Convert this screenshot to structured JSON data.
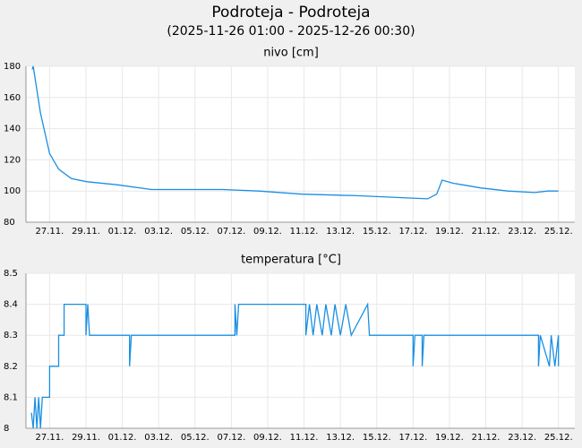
{
  "title": "Podroteja - Podroteja",
  "subtitle": "(2025-11-26 01:00 - 2025-12-26 00:30)",
  "chart_data": [
    {
      "type": "line",
      "title": "nivo [cm]",
      "color": "#1a8fe3",
      "grid": true,
      "xlim": [
        -0.3,
        29.9
      ],
      "ylim": [
        80,
        180
      ],
      "yticks": [
        80,
        100,
        120,
        140,
        160,
        180
      ],
      "xticks": [
        {
          "value": 1,
          "label": "27.11."
        },
        {
          "value": 3,
          "label": "29.11."
        },
        {
          "value": 5,
          "label": "01.12."
        },
        {
          "value": 7,
          "label": "03.12."
        },
        {
          "value": 9,
          "label": "05.12."
        },
        {
          "value": 11,
          "label": "07.12."
        },
        {
          "value": 13,
          "label": "09.12."
        },
        {
          "value": 15,
          "label": "11.12."
        },
        {
          "value": 17,
          "label": "13.12."
        },
        {
          "value": 19,
          "label": "15.12."
        },
        {
          "value": 21,
          "label": "17.12."
        },
        {
          "value": 23,
          "label": "19.12."
        },
        {
          "value": 25,
          "label": "21.12."
        },
        {
          "value": 27,
          "label": "23.12."
        },
        {
          "value": 29,
          "label": "25.12."
        }
      ],
      "x": [
        0.04,
        0.1,
        0.5,
        1.0,
        1.5,
        2.2,
        3.05,
        4.7,
        6.6,
        10.5,
        12.5,
        14.9,
        17.9,
        20.8,
        21.8,
        22.3,
        22.6,
        23.2,
        24.7,
        26.2,
        27.7,
        28.4,
        29.0
      ],
      "values": [
        178,
        180,
        150,
        124,
        114,
        108,
        106,
        104,
        101,
        101,
        100,
        98,
        97,
        95.5,
        95,
        98,
        107,
        105,
        102,
        100,
        99,
        100,
        100
      ]
    },
    {
      "type": "line",
      "title": "temperatura [°C]",
      "color": "#1a8fe3",
      "grid": true,
      "xlim": [
        -0.3,
        29.9
      ],
      "ylim": [
        8,
        8.5
      ],
      "yticks": [
        8,
        8.1,
        8.2,
        8.3,
        8.4,
        8.5
      ],
      "xticks": [
        {
          "value": 1,
          "label": "27.11."
        },
        {
          "value": 3,
          "label": "29.11."
        },
        {
          "value": 5,
          "label": "01.12."
        },
        {
          "value": 7,
          "label": "03.12."
        },
        {
          "value": 9,
          "label": "05.12."
        },
        {
          "value": 11,
          "label": "07.12."
        },
        {
          "value": 13,
          "label": "09.12."
        },
        {
          "value": 15,
          "label": "11.12."
        },
        {
          "value": 17,
          "label": "13.12."
        },
        {
          "value": 19,
          "label": "15.12."
        },
        {
          "value": 21,
          "label": "17.12."
        },
        {
          "value": 23,
          "label": "19.12."
        },
        {
          "value": 25,
          "label": "21.12."
        },
        {
          "value": 27,
          "label": "23.12."
        },
        {
          "value": 29,
          "label": "25.12."
        }
      ],
      "x": [
        0.0,
        0.1,
        0.2,
        0.3,
        0.4,
        0.5,
        0.6,
        1.0,
        1.0,
        1.5,
        1.5,
        1.8,
        1.8,
        3.0,
        3.0,
        3.1,
        3.2,
        5.4,
        5.4,
        5.5,
        11.2,
        11.2,
        11.3,
        11.4,
        15.1,
        15.1,
        15.3,
        15.5,
        15.7,
        16.0,
        16.2,
        16.5,
        16.7,
        17.0,
        17.3,
        17.6,
        18.5,
        18.6,
        21.0,
        21.0,
        21.1,
        21.5,
        21.5,
        21.6,
        27.9,
        27.9,
        28.0,
        28.5,
        28.6,
        28.8,
        29.0,
        29.0
      ],
      "values": [
        8.05,
        8.0,
        8.1,
        8.0,
        8.1,
        8.0,
        8.1,
        8.1,
        8.2,
        8.2,
        8.3,
        8.3,
        8.4,
        8.4,
        8.3,
        8.4,
        8.3,
        8.3,
        8.2,
        8.3,
        8.3,
        8.4,
        8.3,
        8.4,
        8.4,
        8.3,
        8.4,
        8.3,
        8.4,
        8.3,
        8.4,
        8.3,
        8.4,
        8.3,
        8.4,
        8.3,
        8.4,
        8.3,
        8.3,
        8.2,
        8.3,
        8.3,
        8.2,
        8.3,
        8.3,
        8.2,
        8.3,
        8.2,
        8.3,
        8.2,
        8.3,
        8.2
      ]
    }
  ]
}
